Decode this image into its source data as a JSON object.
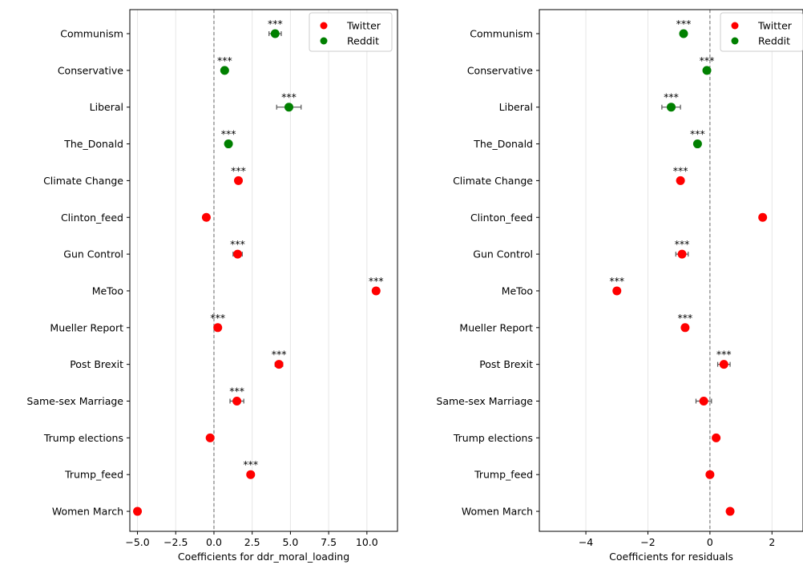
{
  "chart_data": [
    {
      "type": "scatter",
      "orientation": "horizontal",
      "xlabel": "Coefficients for ddr_moral_loading",
      "xlim": [
        -5.5,
        12.0
      ],
      "xticks": [
        -5.0,
        -2.5,
        0.0,
        2.5,
        5.0,
        7.5,
        10.0
      ],
      "xtick_labels": [
        "−5.0",
        "−2.5",
        "0.0",
        "2.5",
        "5.0",
        "7.5",
        "10.0"
      ],
      "reference_line": 0,
      "grid": "vertical",
      "legend": "top-right",
      "categories": [
        "Communism",
        "Conservative",
        "Liberal",
        "The_Donald",
        "Climate Change",
        "Clinton_feed",
        "Gun Control",
        "MeToo",
        "Mueller Report",
        "Post Brexit",
        "Same-sex Marriage",
        "Trump elections",
        "Trump_feed",
        "Women March"
      ],
      "series": [
        {
          "name": "Twitter",
          "color": "#ff0000",
          "points": [
            {
              "category": "Climate Change",
              "value": 1.6,
              "ci": [
                1.45,
                1.75
              ],
              "sig": "***"
            },
            {
              "category": "Clinton_feed",
              "value": -0.5,
              "ci": [
                -0.6,
                -0.4
              ],
              "sig": ""
            },
            {
              "category": "Gun Control",
              "value": 1.55,
              "ci": [
                1.25,
                1.85
              ],
              "sig": "***"
            },
            {
              "category": "MeToo",
              "value": 10.6,
              "ci": [
                10.5,
                10.7
              ],
              "sig": "***"
            },
            {
              "category": "Mueller Report",
              "value": 0.25,
              "ci": [
                0.15,
                0.35
              ],
              "sig": "***"
            },
            {
              "category": "Post Brexit",
              "value": 4.25,
              "ci": [
                4.0,
                4.5
              ],
              "sig": "***"
            },
            {
              "category": "Same-sex Marriage",
              "value": 1.5,
              "ci": [
                1.05,
                1.95
              ],
              "sig": "***"
            },
            {
              "category": "Trump elections",
              "value": -0.25,
              "ci": [
                -0.35,
                -0.15
              ],
              "sig": ""
            },
            {
              "category": "Trump_feed",
              "value": 2.4,
              "ci": [
                2.25,
                2.55
              ],
              "sig": "***"
            },
            {
              "category": "Women March",
              "value": -5.0,
              "ci": [
                -5.1,
                -4.9
              ],
              "sig": ""
            }
          ]
        },
        {
          "name": "Reddit",
          "color": "#008000",
          "points": [
            {
              "category": "Communism",
              "value": 4.0,
              "ci": [
                3.6,
                4.4
              ],
              "sig": "***"
            },
            {
              "category": "Conservative",
              "value": 0.7,
              "ci": [
                0.6,
                0.8
              ],
              "sig": "***"
            },
            {
              "category": "Liberal",
              "value": 4.9,
              "ci": [
                4.1,
                5.7
              ],
              "sig": "***"
            },
            {
              "category": "The_Donald",
              "value": 0.95,
              "ci": [
                0.85,
                1.05
              ],
              "sig": "***"
            }
          ]
        }
      ]
    },
    {
      "type": "scatter",
      "orientation": "horizontal",
      "xlabel": "Coefficients for residuals",
      "xlim": [
        -5.5,
        3.0
      ],
      "xticks": [
        -4,
        -2,
        0,
        2
      ],
      "xtick_labels": [
        "−4",
        "−2",
        "0",
        "2"
      ],
      "reference_line": 0,
      "grid": "vertical",
      "legend": "top-right",
      "categories": [
        "Communism",
        "Conservative",
        "Liberal",
        "The_Donald",
        "Climate Change",
        "Clinton_feed",
        "Gun Control",
        "MeToo",
        "Mueller Report",
        "Post Brexit",
        "Same-sex Marriage",
        "Trump elections",
        "Trump_feed",
        "Women March"
      ],
      "series": [
        {
          "name": "Twitter",
          "color": "#ff0000",
          "points": [
            {
              "category": "Climate Change",
              "value": -0.95,
              "ci": [
                -1.0,
                -0.9
              ],
              "sig": "***"
            },
            {
              "category": "Clinton_feed",
              "value": 1.7,
              "ci": [
                1.65,
                1.75
              ],
              "sig": ""
            },
            {
              "category": "Gun Control",
              "value": -0.9,
              "ci": [
                -1.1,
                -0.7
              ],
              "sig": "***"
            },
            {
              "category": "MeToo",
              "value": -3.0,
              "ci": [
                -3.05,
                -2.95
              ],
              "sig": "***"
            },
            {
              "category": "Mueller Report",
              "value": -0.8,
              "ci": [
                -0.85,
                -0.75
              ],
              "sig": "***"
            },
            {
              "category": "Post Brexit",
              "value": 0.45,
              "ci": [
                0.25,
                0.65
              ],
              "sig": "***"
            },
            {
              "category": "Same-sex Marriage",
              "value": -0.2,
              "ci": [
                -0.45,
                0.05
              ],
              "sig": ""
            },
            {
              "category": "Trump elections",
              "value": 0.2,
              "ci": [
                0.15,
                0.25
              ],
              "sig": ""
            },
            {
              "category": "Trump_feed",
              "value": 0.0,
              "ci": [
                -0.05,
                0.05
              ],
              "sig": ""
            },
            {
              "category": "Women March",
              "value": 0.65,
              "ci": [
                0.6,
                0.7
              ],
              "sig": ""
            }
          ]
        },
        {
          "name": "Reddit",
          "color": "#008000",
          "points": [
            {
              "category": "Communism",
              "value": -0.85,
              "ci": [
                -0.95,
                -0.75
              ],
              "sig": "***"
            },
            {
              "category": "Conservative",
              "value": -0.1,
              "ci": [
                -0.15,
                -0.05
              ],
              "sig": "***"
            },
            {
              "category": "Liberal",
              "value": -1.25,
              "ci": [
                -1.55,
                -0.95
              ],
              "sig": "***"
            },
            {
              "category": "The_Donald",
              "value": -0.4,
              "ci": [
                -0.45,
                -0.35
              ],
              "sig": "***"
            }
          ]
        }
      ]
    }
  ]
}
